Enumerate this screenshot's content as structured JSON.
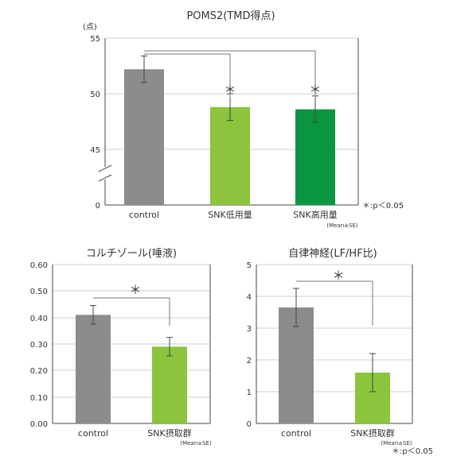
{
  "chart_data": [
    {
      "type": "bar",
      "title": "POMS2(TMD得点)",
      "ylabel": "(点)",
      "categories": [
        "control",
        "SNK低用量",
        "SNK高用量"
      ],
      "values": [
        52.2,
        48.8,
        48.6
      ],
      "errors": [
        1.2,
        1.2,
        1.2
      ],
      "colors": [
        "#8c8c8c",
        "#8cc43d",
        "#0a9640"
      ],
      "yticks": [
        "55",
        "50",
        "45",
        "0"
      ],
      "ylim": [
        0,
        55
      ],
      "axis_break": true,
      "significance": [
        "＊",
        "＊"
      ],
      "note_mean_se": "(Mean±SE)",
      "note_p": "＊:p＜0.05"
    },
    {
      "type": "bar",
      "title": "コルチゾール(唾液)",
      "categories": [
        "control",
        "SNK摂取群"
      ],
      "values": [
        0.41,
        0.29
      ],
      "errors": [
        0.035,
        0.035
      ],
      "colors": [
        "#8c8c8c",
        "#8cc43d"
      ],
      "yticks": [
        "0.60",
        "0.50",
        "0.40",
        "0.30",
        "0.20",
        "0.10",
        "0.00"
      ],
      "ylim": [
        0,
        0.6
      ],
      "significance": [
        "＊"
      ],
      "note_mean_se": "(Mean±SE)"
    },
    {
      "type": "bar",
      "title": "自律神経(LF/HF比)",
      "categories": [
        "control",
        "SNK摂取群"
      ],
      "values": [
        3.65,
        1.6
      ],
      "errors": [
        0.6,
        0.6
      ],
      "colors": [
        "#8c8c8c",
        "#8cc43d"
      ],
      "yticks": [
        "5",
        "4",
        "3",
        "2",
        "1",
        "0"
      ],
      "ylim": [
        0,
        5
      ],
      "significance": [
        "＊"
      ],
      "note_mean_se": "(Mean±SE)",
      "note_p": "＊:p＜0.05"
    }
  ]
}
